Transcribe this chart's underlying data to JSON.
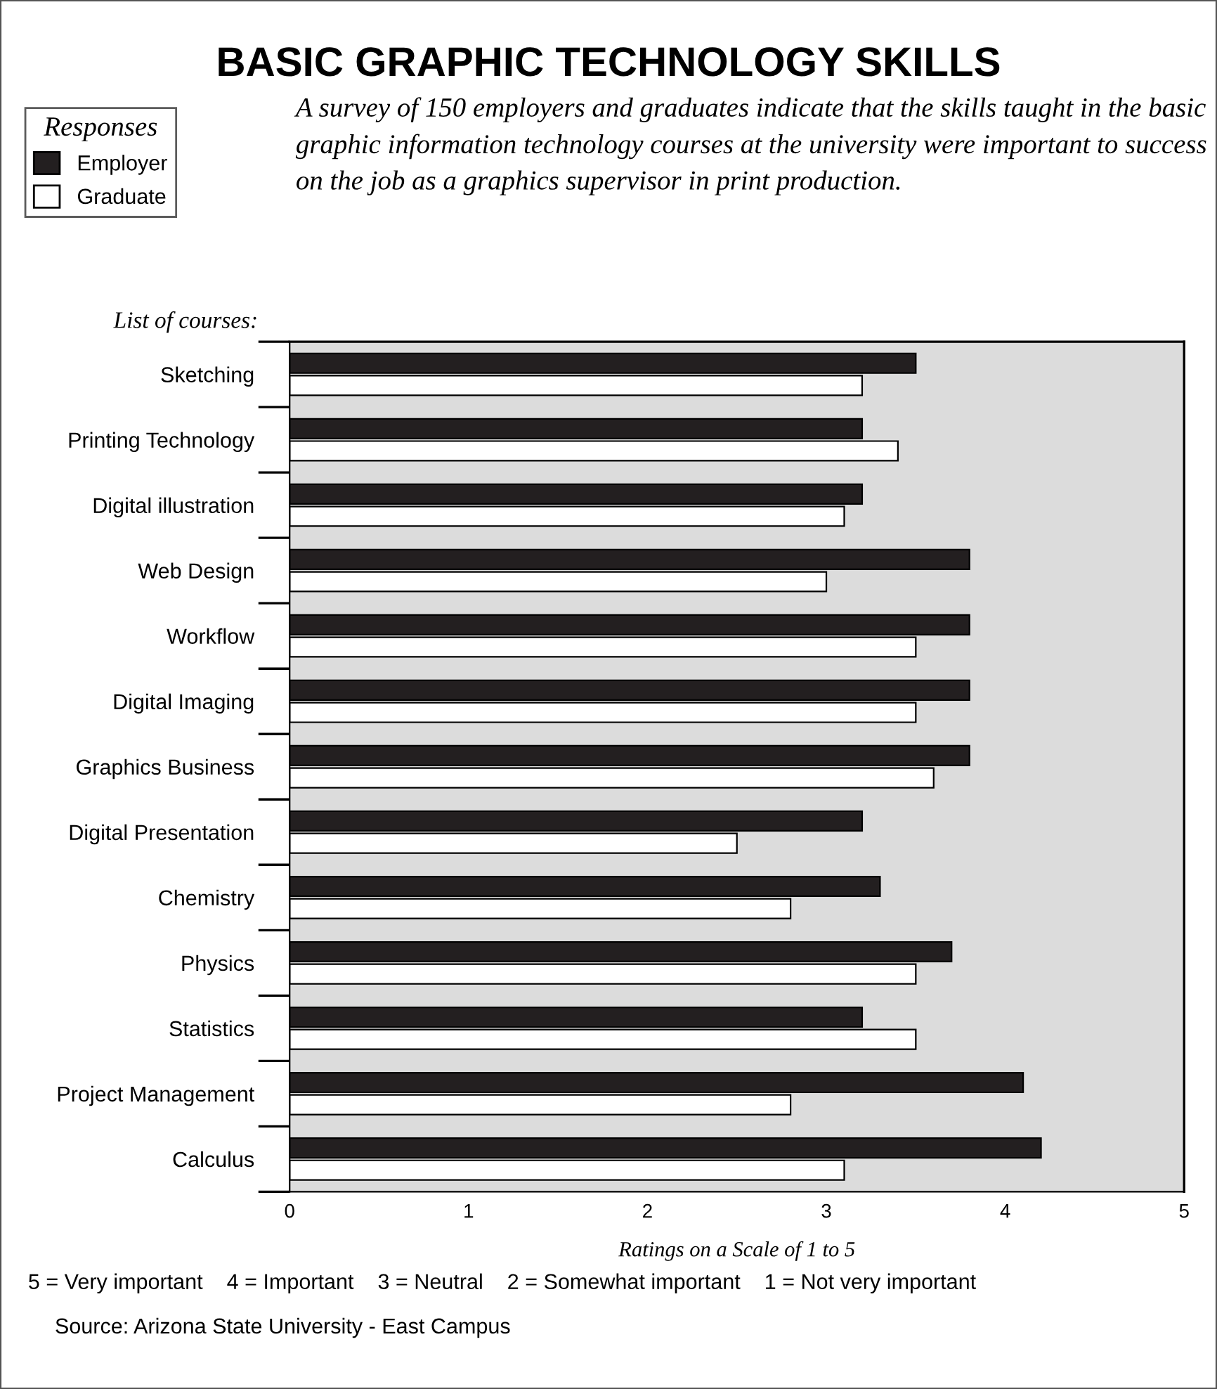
{
  "chart_data": {
    "type": "bar",
    "orientation": "horizontal",
    "title": "BASIC GRAPHIC TECHNOLOGY SKILLS",
    "subtitle": "A survey of 150 employers and graduates indicate that the skills taught in the basic graphic information technology courses at the university were important to success on the job as a graphics supervisor in print production.",
    "legend_title": "Responses",
    "legend": "top left",
    "ylabel": "List of courses:",
    "xlabel": "Ratings on a Scale of 1 to 5",
    "categories": [
      "Sketching",
      "Printing Technology",
      "Digital illustration",
      "Web Design",
      "Workflow",
      "Digital Imaging",
      "Graphics Business",
      "Digital Presentation",
      "Chemistry",
      "Physics",
      "Statistics",
      "Project Management",
      "Calculus"
    ],
    "series": [
      {
        "name": "Employer",
        "color": "#231f20",
        "values": [
          3.5,
          3.2,
          3.2,
          3.8,
          3.8,
          3.8,
          3.8,
          3.2,
          3.3,
          3.7,
          3.2,
          4.1,
          4.2
        ]
      },
      {
        "name": "Graduate",
        "color": "#ffffff",
        "values": [
          3.2,
          3.4,
          3.1,
          3.0,
          3.5,
          3.5,
          3.6,
          2.5,
          2.8,
          3.5,
          3.5,
          2.8,
          3.1
        ]
      }
    ],
    "xlim": [
      0,
      5
    ],
    "xticks": [
      0,
      1,
      2,
      3,
      4,
      5
    ],
    "grid": false,
    "annotations": [
      "5 = Very important    4 = Important    3 = Neutral    2 = Somewhat important    1 = Not very important",
      "Source: Arizona State University - East Campus"
    ]
  }
}
